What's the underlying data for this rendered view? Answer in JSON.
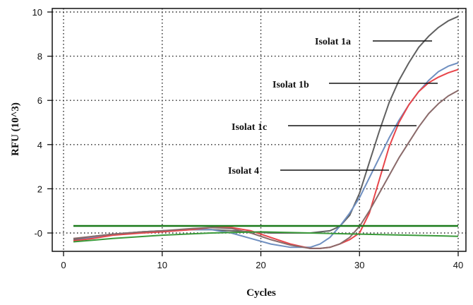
{
  "chart_data": {
    "type": "line",
    "xlabel": "Cycles",
    "ylabel": "RFU (10^3)",
    "xlim": [
      0,
      40
    ],
    "ylim": [
      -1,
      10
    ],
    "x_ticks": [
      "0",
      "10",
      "20",
      "30",
      "40"
    ],
    "y_ticks": [
      "-0",
      "2",
      "4",
      "6",
      "8",
      "10"
    ],
    "y_tick_values": [
      0,
      2,
      4,
      6,
      8,
      10
    ],
    "grid": true,
    "grid_style": "dotted",
    "annotations": [
      {
        "text": "Isolat 1a",
        "target_series": "s1"
      },
      {
        "text": "Isolat 1b",
        "target_series": "s2"
      },
      {
        "text": "Isolat 1c",
        "target_series": "s3"
      },
      {
        "text": "Isolat 4",
        "target_series": "s4"
      }
    ],
    "series": [
      {
        "id": "s1",
        "color": "#606060",
        "x": [
          1,
          3,
          5,
          8,
          10,
          13,
          15,
          17,
          19,
          21,
          23,
          25,
          26,
          27,
          28,
          29,
          30,
          31,
          32,
          33,
          34,
          35,
          36,
          37,
          38,
          39,
          40
        ],
        "y": [
          -0.3,
          -0.15,
          -0.05,
          0.05,
          0.1,
          0.15,
          0.15,
          0.1,
          0.05,
          0.0,
          0.0,
          0.0,
          0.05,
          0.1,
          0.3,
          0.8,
          1.8,
          3.2,
          4.6,
          5.9,
          6.9,
          7.7,
          8.4,
          8.9,
          9.3,
          9.6,
          9.8
        ]
      },
      {
        "id": "s2",
        "color": "#6f8fc0",
        "x": [
          1,
          3,
          5,
          8,
          10,
          13,
          15,
          17,
          19,
          21,
          23,
          25,
          26,
          27,
          28,
          29,
          30,
          31,
          32,
          33,
          34,
          35,
          36,
          37,
          38,
          39,
          40
        ],
        "y": [
          -0.35,
          -0.2,
          -0.05,
          0.05,
          0.1,
          0.15,
          0.15,
          0.0,
          -0.25,
          -0.5,
          -0.65,
          -0.65,
          -0.5,
          -0.2,
          0.3,
          0.9,
          1.6,
          2.5,
          3.4,
          4.3,
          5.1,
          5.8,
          6.4,
          6.9,
          7.3,
          7.55,
          7.7
        ]
      },
      {
        "id": "s3",
        "color": "#e8454a",
        "x": [
          1,
          3,
          5,
          8,
          10,
          13,
          15,
          17,
          19,
          21,
          23,
          25,
          26,
          27,
          28,
          29,
          30,
          31,
          32,
          33,
          34,
          35,
          36,
          37,
          38,
          39,
          40
        ],
        "y": [
          -0.35,
          -0.25,
          -0.1,
          0.0,
          0.05,
          0.15,
          0.25,
          0.25,
          0.1,
          -0.2,
          -0.5,
          -0.7,
          -0.7,
          -0.65,
          -0.5,
          -0.3,
          0.0,
          0.9,
          2.4,
          3.9,
          5.0,
          5.8,
          6.4,
          6.8,
          7.05,
          7.25,
          7.4
        ]
      },
      {
        "id": "s4",
        "color": "#8a6a6a",
        "x": [
          1,
          3,
          5,
          8,
          10,
          13,
          15,
          17,
          19,
          21,
          23,
          25,
          26,
          27,
          28,
          29,
          30,
          31,
          32,
          33,
          34,
          35,
          36,
          37,
          38,
          39,
          40
        ],
        "y": [
          -0.25,
          -0.15,
          -0.05,
          0.05,
          0.1,
          0.2,
          0.25,
          0.2,
          0.0,
          -0.3,
          -0.55,
          -0.7,
          -0.7,
          -0.65,
          -0.5,
          -0.2,
          0.3,
          1.0,
          1.8,
          2.6,
          3.4,
          4.1,
          4.8,
          5.4,
          5.85,
          6.2,
          6.45
        ]
      },
      {
        "id": "s5",
        "color": "#3a9a3a",
        "x": [
          1,
          5,
          10,
          15,
          20,
          25,
          30,
          35,
          40
        ],
        "y": [
          -0.4,
          -0.25,
          -0.1,
          0.0,
          0.05,
          0.0,
          -0.05,
          -0.1,
          -0.15
        ]
      },
      {
        "id": "s6",
        "color": "#1a7a1a",
        "x": [
          1,
          40
        ],
        "y": [
          0.32,
          0.32
        ]
      }
    ]
  }
}
